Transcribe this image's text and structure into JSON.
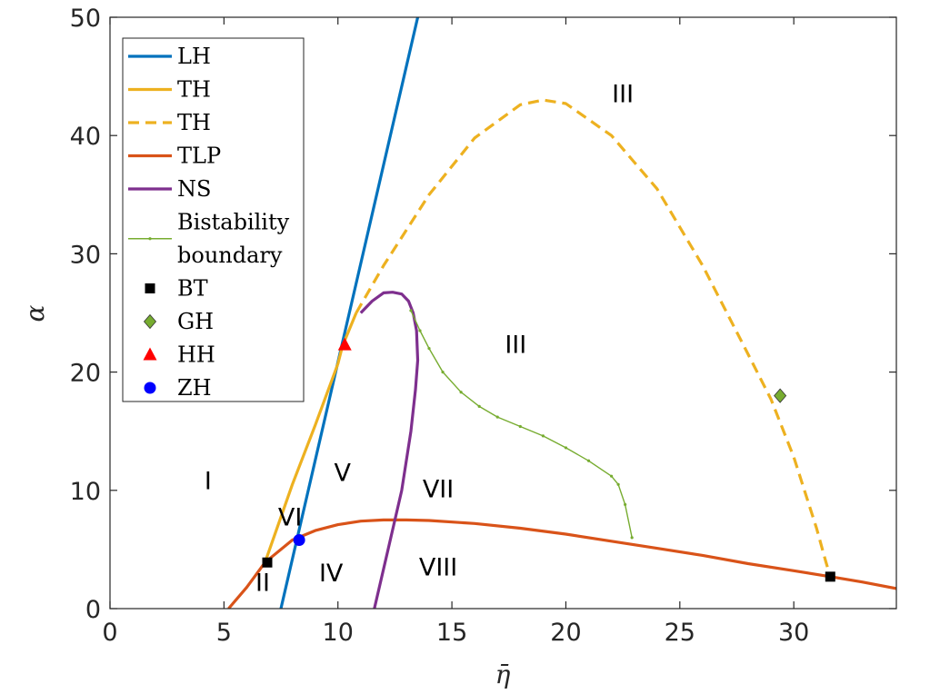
{
  "chart_data": {
    "type": "line",
    "xlabel": "η̄",
    "ylabel": "α",
    "xlim": [
      0,
      34.5
    ],
    "ylim": [
      0,
      50
    ],
    "xticks": [
      0,
      5,
      10,
      15,
      20,
      25,
      30
    ],
    "yticks": [
      0,
      10,
      20,
      30,
      40,
      50
    ],
    "grid": false,
    "legend_position": "top-left",
    "series": [
      {
        "name": "LH",
        "style": "solid",
        "color": "#0072BD",
        "x": [
          7.5,
          13.5
        ],
        "y": [
          0,
          50
        ]
      },
      {
        "name": "TH",
        "style": "solid",
        "color": "#EDB120",
        "x": [
          6.8,
          8.0,
          9.0,
          10.0,
          10.2,
          10.8
        ],
        "y": [
          3.9,
          10.5,
          15.5,
          20.7,
          22.2,
          25.0
        ]
      },
      {
        "name": "TH",
        "style": "dashed",
        "color": "#EDB120",
        "x": [
          10.8,
          12.0,
          14.0,
          16.0,
          18.0,
          19.0,
          20.0,
          22.0,
          24.0,
          26.0,
          28.0,
          29.0,
          30.0,
          31.0,
          31.4,
          31.6
        ],
        "y": [
          25.0,
          29.0,
          35.0,
          39.8,
          42.6,
          43.0,
          42.7,
          40.0,
          35.5,
          29.0,
          21.5,
          17.7,
          12.8,
          6.8,
          4.0,
          2.7
        ]
      },
      {
        "name": "TLP",
        "style": "solid",
        "color": "#D95319",
        "x": [
          5.2,
          6.0,
          6.8,
          8.0,
          9.0,
          10.0,
          11.0,
          12.0,
          13.0,
          14.0,
          16.0,
          18.0,
          20.0,
          22.0,
          24.0,
          26.0,
          28.0,
          30.0,
          31.6,
          33.0,
          34.5
        ],
        "y": [
          0,
          1.8,
          3.9,
          5.8,
          6.6,
          7.1,
          7.4,
          7.5,
          7.5,
          7.45,
          7.2,
          6.8,
          6.3,
          5.7,
          5.1,
          4.5,
          3.8,
          3.2,
          2.7,
          2.25,
          1.7
        ]
      },
      {
        "name": "NS",
        "style": "solid",
        "color": "#7E2F8E",
        "x": [
          11.6,
          12.2,
          12.8,
          13.2,
          13.4,
          13.5,
          13.45,
          13.3,
          13.1,
          12.8,
          12.4,
          12.0,
          11.5,
          11.0
        ],
        "y": [
          0,
          5.0,
          10.0,
          15.0,
          18.5,
          21.0,
          23.5,
          25.0,
          26.0,
          26.6,
          26.75,
          26.7,
          26.0,
          25.0
        ]
      },
      {
        "name": "Bistability boundary",
        "style": "dotted-line",
        "color": "#77AC30",
        "x": [
          13.2,
          13.6,
          14.0,
          14.6,
          15.4,
          16.2,
          17.0,
          18.0,
          19.0,
          20.0,
          21.0,
          22.0,
          22.3,
          22.6,
          22.9
        ],
        "y": [
          25.2,
          23.5,
          22.0,
          20.0,
          18.3,
          17.1,
          16.2,
          15.4,
          14.6,
          13.6,
          12.5,
          11.2,
          10.5,
          8.8,
          6.0
        ]
      }
    ],
    "points": [
      {
        "name": "BT",
        "marker": "square",
        "color": "#000000",
        "x": 6.9,
        "y": 3.9
      },
      {
        "name": "BT",
        "marker": "square",
        "color": "#000000",
        "x": 31.6,
        "y": 2.7
      },
      {
        "name": "GH",
        "marker": "diamond",
        "color": "#77AC30",
        "x": 29.4,
        "y": 18.0
      },
      {
        "name": "HH",
        "marker": "triangle",
        "color": "#FF0000",
        "x": 10.3,
        "y": 22.3
      },
      {
        "name": "ZH",
        "marker": "circle",
        "color": "#0000FF",
        "x": 8.3,
        "y": 5.8
      }
    ],
    "legend": [
      {
        "label": "LH",
        "kind": "line",
        "style": "solid",
        "color": "#0072BD"
      },
      {
        "label": "TH",
        "kind": "line",
        "style": "solid",
        "color": "#EDB120"
      },
      {
        "label": "TH",
        "kind": "line",
        "style": "dashed",
        "color": "#EDB120"
      },
      {
        "label": "TLP",
        "kind": "line",
        "style": "solid",
        "color": "#D95319"
      },
      {
        "label": "NS",
        "kind": "line",
        "style": "solid",
        "color": "#7E2F8E"
      },
      {
        "label": "Bistability boundary",
        "lines": [
          "Bistability",
          "boundary"
        ],
        "kind": "line",
        "style": "dotted-line",
        "color": "#77AC30"
      },
      {
        "label": "BT",
        "kind": "marker",
        "marker": "square",
        "color": "#000000"
      },
      {
        "label": "GH",
        "kind": "marker",
        "marker": "diamond",
        "color": "#77AC30"
      },
      {
        "label": "HH",
        "kind": "marker",
        "marker": "triangle",
        "color": "#FF0000"
      },
      {
        "label": "ZH",
        "kind": "marker",
        "marker": "circle",
        "color": "#0000FF"
      }
    ],
    "regions": [
      {
        "label": "I",
        "x": 4.3,
        "y": 10.8
      },
      {
        "label": "II",
        "x": 6.7,
        "y": 2.2
      },
      {
        "label": "III",
        "x": 22.5,
        "y": 43.5
      },
      {
        "label": "III",
        "x": 17.8,
        "y": 22.3
      },
      {
        "label": "IV",
        "x": 9.7,
        "y": 3.0
      },
      {
        "label": "V",
        "x": 10.2,
        "y": 11.5
      },
      {
        "label": "VI",
        "x": 7.9,
        "y": 7.7
      },
      {
        "label": "VII",
        "x": 14.4,
        "y": 10.1
      },
      {
        "label": "VIII",
        "x": 14.4,
        "y": 3.5
      }
    ]
  }
}
